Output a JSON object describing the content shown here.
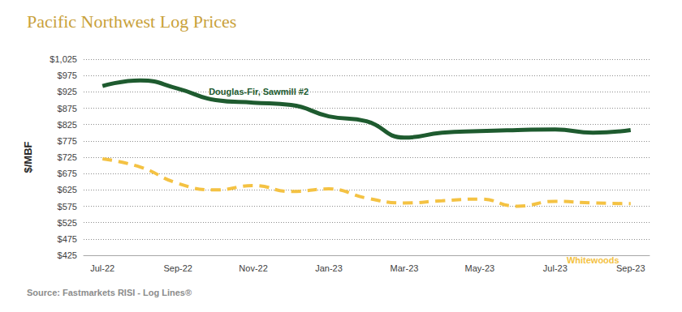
{
  "chart_data": {
    "type": "line",
    "title": "Pacific Northwest Log Prices",
    "source": "Source: Fastmarkets RISI - Log Lines®",
    "y_label": "$/MBF",
    "categories": [
      "Jul-22",
      null,
      "Sep-22",
      null,
      "Nov-22",
      null,
      "Jan-23",
      null,
      "Mar-23",
      null,
      "May-23",
      null,
      "Jul-23",
      null,
      "Sep-23"
    ],
    "series": [
      {
        "name": "Douglas-Fir, Sawmill #2",
        "color": "#1e5b2f",
        "line_style": "solid",
        "values": [
          943,
          960,
          935,
          900,
          892,
          885,
          850,
          835,
          785,
          800,
          805,
          808,
          810,
          800,
          808
        ]
      },
      {
        "name": "Whitewoods",
        "color": "#f4c243",
        "line_style": "dashed",
        "values": [
          720,
          695,
          645,
          625,
          638,
          620,
          628,
          600,
          585,
          592,
          597,
          575,
          590,
          585,
          583
        ]
      }
    ],
    "ylim": [
      425,
      1025
    ],
    "yticks": [
      {
        "value": 425,
        "label": "$425"
      },
      {
        "value": 475,
        "label": "$475"
      },
      {
        "value": 525,
        "label": "$525"
      },
      {
        "value": 575,
        "label": "$575"
      },
      {
        "value": 625,
        "label": "$625"
      },
      {
        "value": 675,
        "label": "$675"
      },
      {
        "value": 725,
        "label": "$725"
      },
      {
        "value": 775,
        "label": "$775"
      },
      {
        "value": 825,
        "label": "$825"
      },
      {
        "value": 875,
        "label": "$875"
      },
      {
        "value": 925,
        "label": "$925"
      },
      {
        "value": 975,
        "label": "$975"
      },
      {
        "value": 1025,
        "label": "$1,025"
      }
    ],
    "grid": true
  }
}
